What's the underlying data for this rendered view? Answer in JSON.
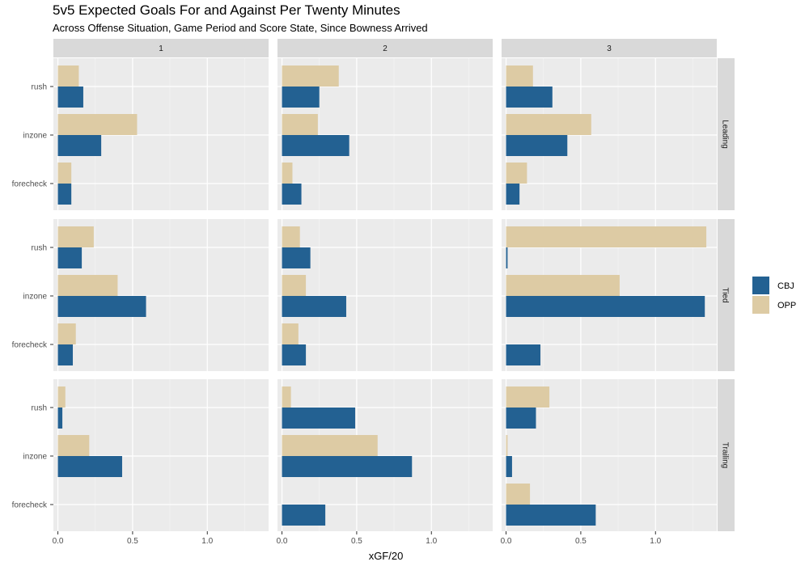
{
  "title": "5v5 Expected Goals For and Against Per Twenty Minutes",
  "subtitle": "Across Offense Situation, Game Period and Score State, Since Bowness Arrived",
  "chart_data": {
    "type": "bar",
    "orientation": "horizontal",
    "title": "5v5 Expected Goals For and Against Per Twenty Minutes",
    "subtitle": "Across Offense Situation, Game Period and Score State, Since Bowness Arrived",
    "xlabel": "xGF/20",
    "ylabel": "",
    "xlim": [
      -0.03,
      1.41
    ],
    "xticks": [
      0.0,
      0.5,
      1.0
    ],
    "xtick_labels": [
      "0.0",
      "0.5",
      "1.0"
    ],
    "grid": true,
    "categories": [
      "rush",
      "inzone",
      "forecheck"
    ],
    "col_facets": [
      "1",
      "2",
      "3"
    ],
    "row_facets": [
      "Leading",
      "Tied",
      "Trailing"
    ],
    "legend": {
      "position": "right",
      "entries": [
        {
          "name": "CBJ",
          "color": "#236192"
        },
        {
          "name": "OPP",
          "color": "#DDCBA4"
        }
      ]
    },
    "panels": [
      {
        "row": "Leading",
        "col": "1",
        "CBJ": [
          0.17,
          0.29,
          0.09
        ],
        "OPP": [
          0.14,
          0.53,
          0.09
        ]
      },
      {
        "row": "Leading",
        "col": "2",
        "CBJ": [
          0.25,
          0.45,
          0.13
        ],
        "OPP": [
          0.38,
          0.24,
          0.07
        ]
      },
      {
        "row": "Leading",
        "col": "3",
        "CBJ": [
          0.31,
          0.41,
          0.09
        ],
        "OPP": [
          0.18,
          0.57,
          0.14
        ]
      },
      {
        "row": "Tied",
        "col": "1",
        "CBJ": [
          0.16,
          0.59,
          0.1
        ],
        "OPP": [
          0.24,
          0.4,
          0.12
        ]
      },
      {
        "row": "Tied",
        "col": "2",
        "CBJ": [
          0.19,
          0.43,
          0.16
        ],
        "OPP": [
          0.12,
          0.16,
          0.11
        ]
      },
      {
        "row": "Tied",
        "col": "3",
        "CBJ": [
          0.01,
          1.33,
          0.23
        ],
        "OPP": [
          1.34,
          0.76,
          0.0
        ]
      },
      {
        "row": "Trailing",
        "col": "1",
        "CBJ": [
          0.03,
          0.43,
          0.0
        ],
        "OPP": [
          0.05,
          0.21,
          0.0
        ]
      },
      {
        "row": "Trailing",
        "col": "2",
        "CBJ": [
          0.49,
          0.87,
          0.29
        ],
        "OPP": [
          0.06,
          0.64,
          0.0
        ]
      },
      {
        "row": "Trailing",
        "col": "3",
        "CBJ": [
          0.2,
          0.04,
          0.6
        ],
        "OPP": [
          0.29,
          0.01,
          0.16
        ]
      }
    ]
  }
}
